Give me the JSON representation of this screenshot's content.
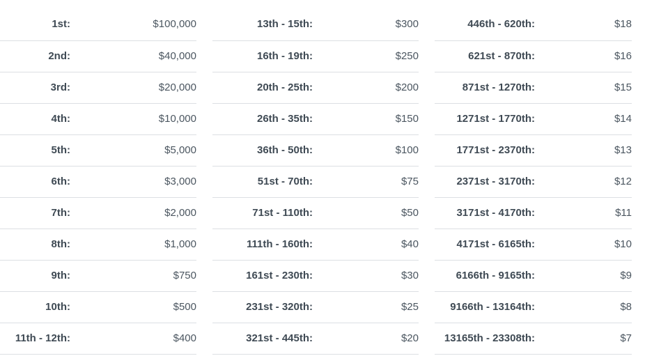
{
  "payouts": {
    "columns": [
      {
        "rows": [
          {
            "place": "1st:",
            "amount": "$100,000"
          },
          {
            "place": "2nd:",
            "amount": "$40,000"
          },
          {
            "place": "3rd:",
            "amount": "$20,000"
          },
          {
            "place": "4th:",
            "amount": "$10,000"
          },
          {
            "place": "5th:",
            "amount": "$5,000"
          },
          {
            "place": "6th:",
            "amount": "$3,000"
          },
          {
            "place": "7th:",
            "amount": "$2,000"
          },
          {
            "place": "8th:",
            "amount": "$1,000"
          },
          {
            "place": "9th:",
            "amount": "$750"
          },
          {
            "place": "10th:",
            "amount": "$500"
          },
          {
            "place": "11th - 12th:",
            "amount": "$400"
          }
        ]
      },
      {
        "rows": [
          {
            "place": "13th - 15th:",
            "amount": "$300"
          },
          {
            "place": "16th - 19th:",
            "amount": "$250"
          },
          {
            "place": "20th - 25th:",
            "amount": "$200"
          },
          {
            "place": "26th - 35th:",
            "amount": "$150"
          },
          {
            "place": "36th - 50th:",
            "amount": "$100"
          },
          {
            "place": "51st - 70th:",
            "amount": "$75"
          },
          {
            "place": "71st - 110th:",
            "amount": "$50"
          },
          {
            "place": "111th - 160th:",
            "amount": "$40"
          },
          {
            "place": "161st - 230th:",
            "amount": "$30"
          },
          {
            "place": "231st - 320th:",
            "amount": "$25"
          },
          {
            "place": "321st - 445th:",
            "amount": "$20"
          }
        ]
      },
      {
        "rows": [
          {
            "place": "446th - 620th:",
            "amount": "$18"
          },
          {
            "place": "621st - 870th:",
            "amount": "$16"
          },
          {
            "place": "871st - 1270th:",
            "amount": "$15"
          },
          {
            "place": "1271st - 1770th:",
            "amount": "$14"
          },
          {
            "place": "1771st - 2370th:",
            "amount": "$13"
          },
          {
            "place": "2371st - 3170th:",
            "amount": "$12"
          },
          {
            "place": "3171st - 4170th:",
            "amount": "$11"
          },
          {
            "place": "4171st - 6165th:",
            "amount": "$10"
          },
          {
            "place": "6166th - 9165th:",
            "amount": "$9"
          },
          {
            "place": "9166th - 13164th:",
            "amount": "$8"
          },
          {
            "place": "13165th - 23308th:",
            "amount": "$7"
          }
        ]
      }
    ]
  }
}
